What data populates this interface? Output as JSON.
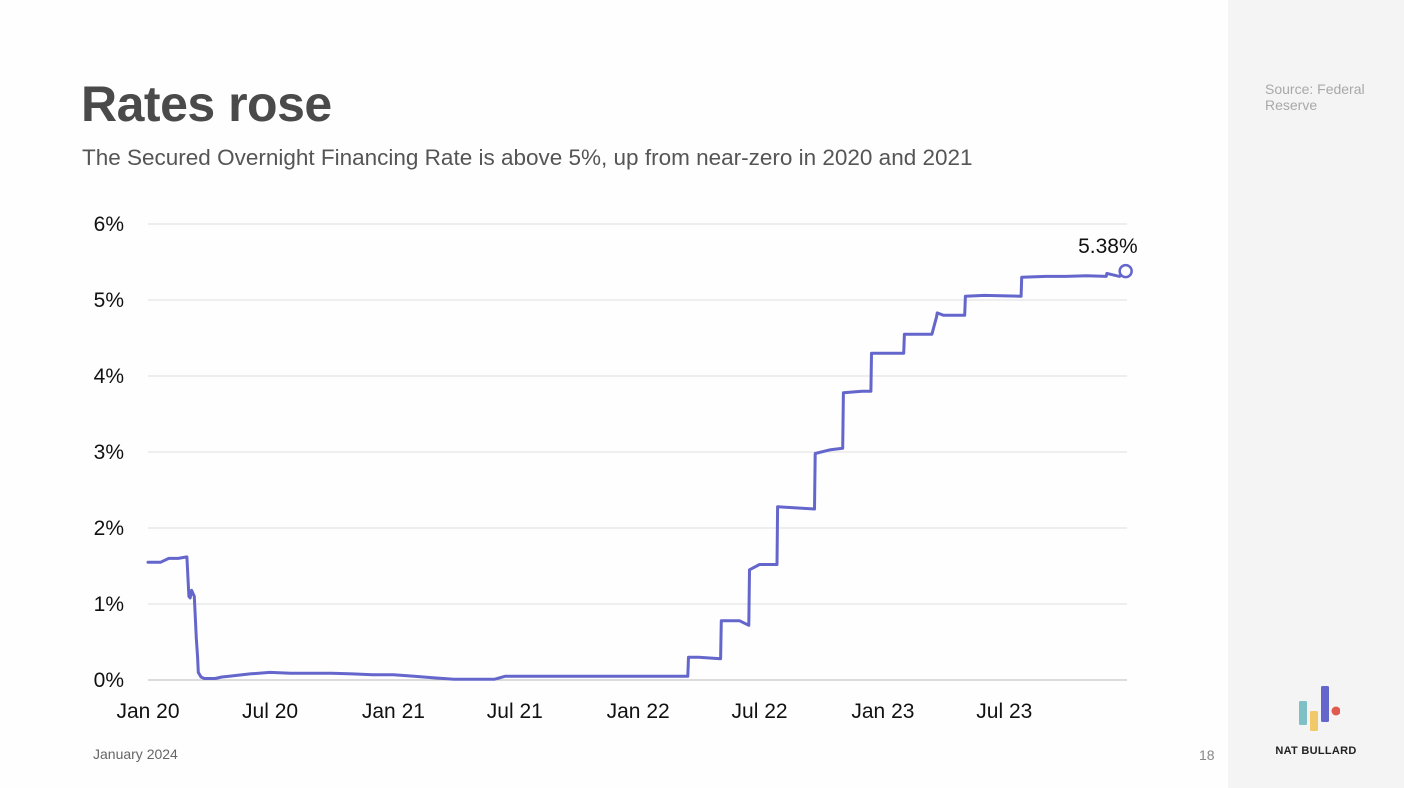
{
  "slide": {
    "title": "Rates rose",
    "subtitle": "The Secured Overnight Financing Rate is above 5%, up from near-zero in 2020 and 2021",
    "date": "January 2024",
    "page_number": "18",
    "source": "Source: Federal Reserve",
    "brand": "NAT BULLARD"
  },
  "colors": {
    "line": "#6466cc",
    "grid": "#dddddd",
    "logo_teal": "#7fbfc6",
    "logo_yellow": "#f1c96a",
    "logo_purple": "#6466cc",
    "logo_red": "#e05a4f"
  },
  "chart_data": {
    "type": "line",
    "title": "",
    "xlabel": "",
    "ylabel": "",
    "ylim": [
      0,
      6
    ],
    "yticks": [
      "0%",
      "1%",
      "2%",
      "3%",
      "4%",
      "5%",
      "6%"
    ],
    "xticks": [
      "Jan 20",
      "Jul 20",
      "Jan 21",
      "Jul 21",
      "Jan 22",
      "Jul 22",
      "Jan 23",
      "Jul 23"
    ],
    "grid": true,
    "end_label": "5.38%",
    "series": [
      {
        "x": [
          "2020-01-01",
          "2020-01-20",
          "2020-02-01",
          "2020-02-15",
          "2020-02-28",
          "2020-03-02",
          "2020-03-04",
          "2020-03-06",
          "2020-03-10",
          "2020-03-13",
          "2020-03-15",
          "2020-03-16",
          "2020-03-20",
          "2020-03-25",
          "2020-04-10",
          "2020-04-20",
          "2020-05-01",
          "2020-06-01",
          "2020-07-01",
          "2020-08-01",
          "2020-09-01",
          "2020-10-01",
          "2020-11-01",
          "2020-12-01",
          "2021-01-01",
          "2021-02-01",
          "2021-03-01",
          "2021-04-01",
          "2021-05-01",
          "2021-06-01",
          "2021-06-17",
          "2021-07-01",
          "2021-09-01",
          "2021-11-01",
          "2022-01-01",
          "2022-03-01",
          "2022-03-16",
          "2022-03-17",
          "2022-04-01",
          "2022-05-04",
          "2022-05-05",
          "2022-06-01",
          "2022-06-15",
          "2022-06-16",
          "2022-07-01",
          "2022-07-27",
          "2022-07-28",
          "2022-08-15",
          "2022-09-21",
          "2022-09-22",
          "2022-10-15",
          "2022-11-02",
          "2022-11-03",
          "2022-12-01",
          "2022-12-14",
          "2022-12-15",
          "2023-01-15",
          "2023-02-01",
          "2023-02-02",
          "2023-03-01",
          "2023-03-15",
          "2023-03-22",
          "2023-03-23",
          "2023-04-01",
          "2023-05-03",
          "2023-05-04",
          "2023-06-01",
          "2023-07-26",
          "2023-07-27",
          "2023-09-01",
          "2023-10-01",
          "2023-11-01",
          "2023-11-30",
          "2023-12-01",
          "2023-12-20",
          "2023-12-29"
        ],
        "values": [
          1.55,
          1.55,
          1.6,
          1.6,
          1.62,
          1.1,
          1.08,
          1.18,
          1.1,
          0.55,
          0.3,
          0.1,
          0.04,
          0.02,
          0.02,
          0.04,
          0.05,
          0.08,
          0.1,
          0.09,
          0.09,
          0.09,
          0.08,
          0.07,
          0.07,
          0.05,
          0.03,
          0.01,
          0.01,
          0.01,
          0.05,
          0.05,
          0.05,
          0.05,
          0.05,
          0.05,
          0.05,
          0.3,
          0.3,
          0.28,
          0.78,
          0.78,
          0.72,
          1.45,
          1.52,
          1.52,
          2.28,
          2.27,
          2.25,
          2.98,
          3.03,
          3.05,
          3.78,
          3.8,
          3.8,
          4.3,
          4.3,
          4.3,
          4.55,
          4.55,
          4.55,
          4.78,
          4.83,
          4.8,
          4.8,
          5.05,
          5.06,
          5.05,
          5.3,
          5.31,
          5.31,
          5.32,
          5.31,
          5.35,
          5.31,
          5.38
        ]
      }
    ]
  }
}
